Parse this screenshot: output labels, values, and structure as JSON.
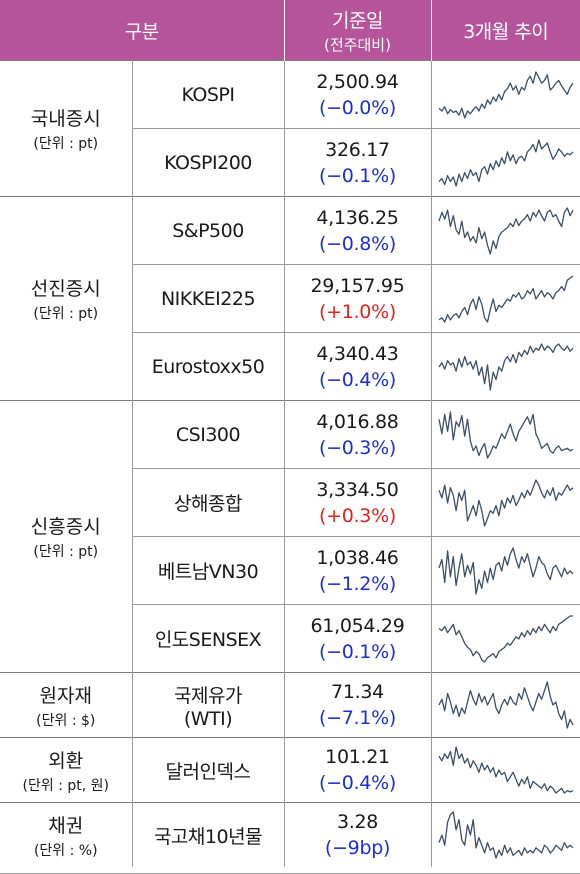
{
  "header": {
    "category": "구분",
    "base_date": "기준일",
    "base_date_sub": "(전주대비)",
    "trend": "3개월 추이"
  },
  "groups": {
    "domestic": {
      "title": "국내증시",
      "unit": "(단위 : pt)"
    },
    "advanced": {
      "title": "선진증시",
      "unit": "(단위 : pt)"
    },
    "emerging": {
      "title": "신흥증시",
      "unit": "(단위 : pt)"
    },
    "commodity": {
      "title": "원자재",
      "unit": "(단위 : $)"
    },
    "fx": {
      "title": "외환",
      "unit": "(단위 : pt, 원)"
    },
    "bond": {
      "title": "채권",
      "unit": "(단위 : %)"
    }
  },
  "rows": [
    {
      "name": "KOSPI",
      "value": "2,500.94",
      "change": "(−0.0%)",
      "dir": "neg",
      "trend": [
        48,
        50,
        47,
        52,
        49,
        51,
        50,
        53,
        48,
        55,
        50,
        52,
        49,
        47,
        50,
        45,
        48,
        42,
        45,
        40,
        43,
        38,
        42,
        36,
        34,
        30,
        35,
        32,
        38,
        33,
        35,
        28,
        25,
        30,
        22,
        26,
        30,
        28,
        24,
        35,
        33,
        30,
        28,
        32,
        35,
        38,
        33,
        30
      ]
    },
    {
      "name": "KOSPI200",
      "value": "326.17",
      "change": "(−0.1%)",
      "dir": "neg",
      "trend": [
        50,
        48,
        52,
        46,
        50,
        47,
        53,
        45,
        50,
        44,
        48,
        42,
        46,
        44,
        50,
        42,
        40,
        45,
        38,
        42,
        36,
        40,
        34,
        38,
        30,
        36,
        32,
        38,
        34,
        33,
        36,
        30,
        28,
        25,
        30,
        22,
        28,
        26,
        24,
        30,
        35,
        32,
        28,
        30,
        33,
        31,
        32,
        30
      ]
    },
    {
      "name": "S&P500",
      "value": "4,136.25",
      "change": "(−0.8%)",
      "dir": "neg",
      "trend": [
        30,
        22,
        28,
        20,
        35,
        25,
        38,
        42,
        30,
        45,
        40,
        48,
        44,
        50,
        36,
        46,
        40,
        52,
        60,
        48,
        55,
        44,
        40,
        38,
        36,
        32,
        35,
        28,
        34,
        30,
        28,
        24,
        30,
        22,
        26,
        20,
        25,
        30,
        22,
        20,
        26,
        24,
        30,
        35,
        22,
        18,
        25,
        20
      ]
    },
    {
      "name": "NIKKEI225",
      "value": "29,157.95",
      "change": "(+1.0%)",
      "dir": "pos",
      "trend": [
        50,
        48,
        52,
        45,
        50,
        46,
        44,
        48,
        42,
        38,
        45,
        35,
        30,
        40,
        28,
        35,
        48,
        52,
        40,
        30,
        42,
        36,
        38,
        34,
        30,
        32,
        26,
        28,
        24,
        30,
        28,
        22,
        25,
        20,
        30,
        26,
        22,
        28,
        24,
        26,
        30,
        24,
        22,
        18,
        22,
        12,
        10,
        8
      ]
    },
    {
      "name": "Eurostoxx50",
      "value": "4,340.43",
      "change": "(−0.4%)",
      "dir": "neg",
      "trend": [
        40,
        36,
        42,
        34,
        38,
        36,
        44,
        32,
        40,
        30,
        38,
        35,
        42,
        34,
        48,
        40,
        56,
        38,
        62,
        45,
        52,
        40,
        44,
        34,
        30,
        35,
        28,
        36,
        26,
        30,
        24,
        28,
        20,
        26,
        22,
        24,
        18,
        24,
        20,
        22,
        26,
        20,
        18,
        22,
        24,
        20,
        25,
        22
      ]
    },
    {
      "name": "CSI300",
      "value": "4,016.88",
      "change": "(−0.3%)",
      "dir": "neg",
      "trend": [
        18,
        30,
        14,
        28,
        12,
        35,
        20,
        24,
        15,
        32,
        18,
        36,
        44,
        40,
        48,
        42,
        38,
        50,
        46,
        40,
        42,
        36,
        30,
        34,
        28,
        22,
        30,
        36,
        28,
        24,
        20,
        16,
        22,
        14,
        30,
        35,
        42,
        40,
        38,
        44,
        46,
        42,
        40,
        44,
        43,
        42,
        44,
        43
      ]
    },
    {
      "name": "상해종합",
      "value": "3,334.50",
      "change": "(+0.3%)",
      "dir": "pos",
      "trend": [
        22,
        28,
        18,
        32,
        20,
        26,
        38,
        24,
        30,
        22,
        46,
        40,
        34,
        42,
        30,
        38,
        50,
        44,
        38,
        40,
        34,
        42,
        30,
        36,
        28,
        32,
        26,
        34,
        30,
        24,
        28,
        22,
        26,
        20,
        14,
        18,
        24,
        28,
        22,
        26,
        20,
        30,
        24,
        26,
        22,
        18,
        22,
        20
      ]
    },
    {
      "name": "베트남VN30",
      "value": "1,038.46",
      "change": "(−1.2%)",
      "dir": "neg",
      "trend": [
        30,
        24,
        40,
        18,
        36,
        22,
        42,
        30,
        20,
        36,
        28,
        34,
        26,
        48,
        38,
        44,
        32,
        40,
        30,
        38,
        28,
        26,
        32,
        22,
        28,
        20,
        16,
        24,
        30,
        22,
        26,
        20,
        28,
        36,
        30,
        22,
        26,
        28,
        34,
        38,
        30,
        28,
        32,
        36,
        30,
        34,
        32,
        34
      ]
    },
    {
      "name": "인도SENSEX",
      "value": "61,054.29",
      "change": "(−0.1%)",
      "dir": "neg",
      "trend": [
        22,
        24,
        20,
        26,
        22,
        18,
        28,
        24,
        30,
        36,
        40,
        42,
        48,
        44,
        46,
        52,
        54,
        50,
        48,
        46,
        50,
        44,
        42,
        40,
        36,
        38,
        34,
        30,
        32,
        26,
        30,
        24,
        28,
        22,
        26,
        20,
        24,
        18,
        22,
        26,
        20,
        24,
        18,
        16,
        14,
        12,
        10,
        10
      ]
    },
    {
      "name": "국제유가\n(WTI)",
      "value": "71.34",
      "change": "(−7.1%)",
      "dir": "neg",
      "trend": [
        30,
        26,
        34,
        22,
        28,
        36,
        30,
        38,
        32,
        36,
        28,
        20,
        26,
        30,
        22,
        28,
        24,
        30,
        26,
        22,
        32,
        36,
        30,
        26,
        30,
        24,
        28,
        30,
        22,
        26,
        18,
        24,
        30,
        34,
        28,
        22,
        26,
        20,
        14,
        24,
        30,
        28,
        36,
        40,
        34,
        46,
        40,
        44
      ]
    },
    {
      "name": "달러인덱스",
      "value": "101.21",
      "change": "(−0.4%)",
      "dir": "neg",
      "trend": [
        16,
        20,
        14,
        18,
        12,
        24,
        8,
        18,
        14,
        22,
        18,
        26,
        20,
        24,
        30,
        22,
        28,
        24,
        30,
        26,
        34,
        28,
        32,
        30,
        38,
        34,
        30,
        36,
        42,
        36,
        40,
        34,
        44,
        38,
        40,
        42,
        44,
        40,
        46,
        42,
        44,
        48,
        46,
        44,
        48,
        46,
        47,
        46
      ]
    },
    {
      "name": "국고채10년물",
      "value": "3.28",
      "change": "(−9bp)",
      "dir": "neg",
      "trend": [
        36,
        30,
        38,
        20,
        14,
        12,
        26,
        18,
        34,
        38,
        22,
        30,
        18,
        40,
        32,
        38,
        44,
        36,
        42,
        40,
        48,
        42,
        46,
        38,
        44,
        40,
        46,
        44,
        42,
        46,
        40,
        44,
        42,
        44,
        40,
        42,
        44,
        38,
        40,
        44,
        42,
        38,
        40,
        42,
        36,
        40,
        38,
        40
      ]
    }
  ]
}
